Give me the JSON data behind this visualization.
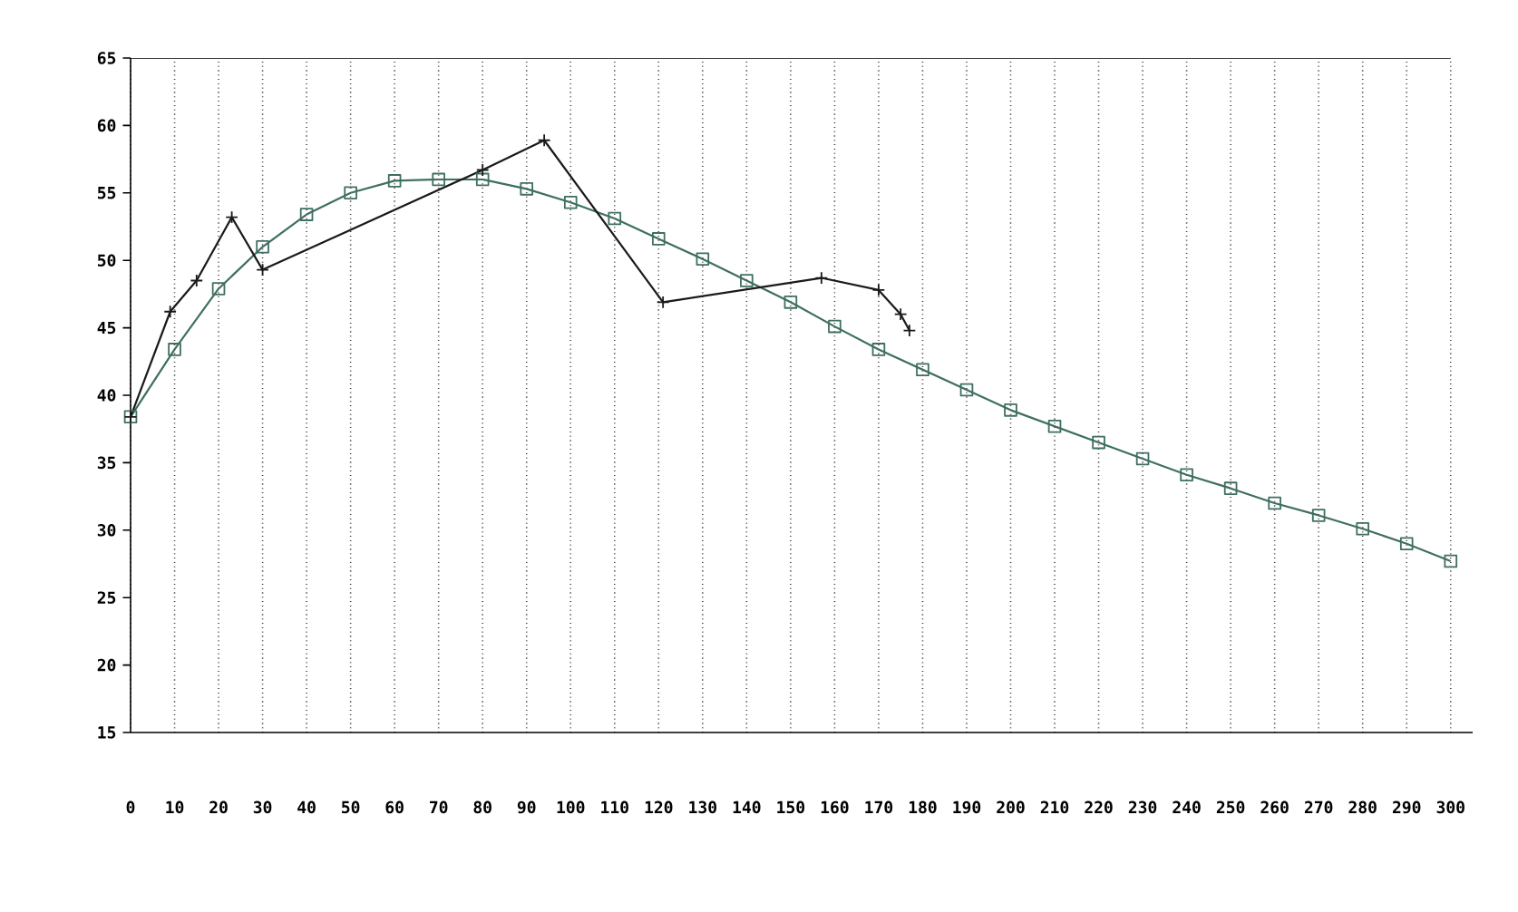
{
  "chart_data": {
    "type": "line",
    "xlim": [
      0,
      305
    ],
    "ylim": [
      15,
      65
    ],
    "xticks": [
      0,
      10,
      20,
      30,
      40,
      50,
      60,
      70,
      80,
      90,
      100,
      110,
      120,
      130,
      140,
      150,
      160,
      170,
      180,
      190,
      200,
      210,
      220,
      230,
      240,
      250,
      260,
      270,
      280,
      290,
      300
    ],
    "yticks": [
      15,
      20,
      25,
      30,
      35,
      40,
      45,
      50,
      55,
      60,
      65
    ],
    "grid": "x",
    "line_style": "solid",
    "series": [
      {
        "color": "#3f6f62",
        "marker": "square",
        "x": [
          0,
          10,
          20,
          30,
          40,
          50,
          60,
          70,
          80,
          90,
          100,
          110,
          120,
          130,
          140,
          150,
          160,
          170,
          180,
          190,
          200,
          210,
          220,
          230,
          240,
          250,
          260,
          270,
          280,
          290,
          300
        ],
        "values": [
          38.4,
          43.4,
          47.9,
          51.0,
          53.4,
          55.0,
          55.9,
          56.0,
          56.0,
          55.3,
          54.3,
          53.1,
          51.6,
          50.1,
          48.5,
          46.9,
          45.1,
          43.4,
          41.9,
          40.4,
          38.9,
          37.7,
          36.5,
          35.3,
          34.1,
          33.1,
          32.0,
          31.1,
          30.1,
          29.0,
          27.7
        ]
      },
      {
        "color": "#1a1a1a",
        "marker": "cross",
        "x": [
          0,
          9,
          15,
          23,
          30,
          80,
          94,
          121,
          157,
          170,
          175,
          177
        ],
        "values": [
          38.4,
          46.2,
          48.5,
          53.2,
          49.3,
          56.7,
          58.9,
          46.9,
          48.7,
          47.8,
          46.0,
          44.8
        ]
      }
    ]
  }
}
